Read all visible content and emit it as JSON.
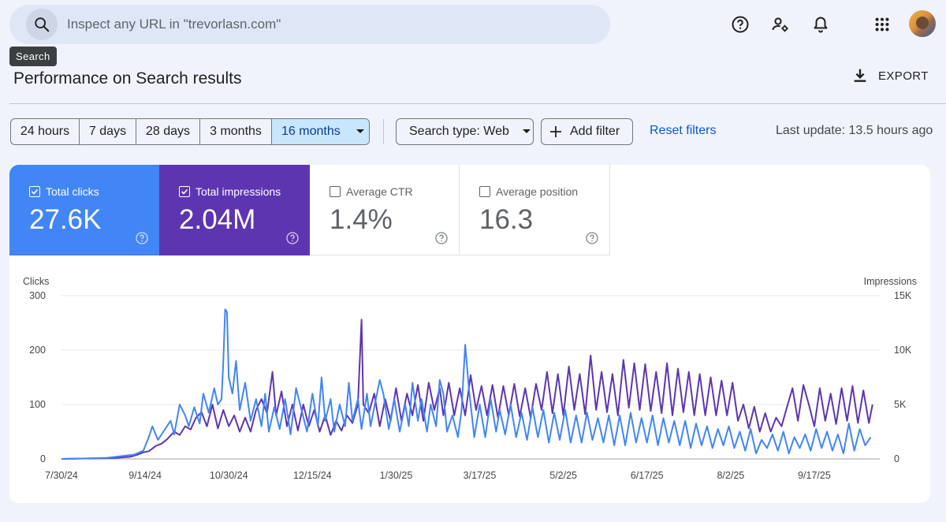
{
  "search": {
    "placeholder": "Inspect any URL in \"trevorlasn.com\"",
    "tooltip": "Search"
  },
  "header_icons": [
    "help-icon",
    "manage-users-icon",
    "notifications-icon",
    "apps-grid-icon"
  ],
  "page": {
    "title": "Performance on Search results",
    "export_label": "EXPORT"
  },
  "filters": {
    "ranges": [
      {
        "label": "24 hours",
        "active": false
      },
      {
        "label": "7 days",
        "active": false
      },
      {
        "label": "28 days",
        "active": false
      },
      {
        "label": "3 months",
        "active": false
      },
      {
        "label": "16 months",
        "active": true
      }
    ],
    "search_type": "Search type: Web",
    "add_filter": "Add filter",
    "reset": "Reset filters",
    "last_update": "Last update: 13.5 hours ago"
  },
  "metrics": [
    {
      "label": "Total clicks",
      "value": "27.6K",
      "checked": true,
      "color": "#4285f4"
    },
    {
      "label": "Total impressions",
      "value": "2.04M",
      "checked": true,
      "color": "#5e35b1"
    },
    {
      "label": "Average CTR",
      "value": "1.4%",
      "checked": false,
      "color": "#ffffff"
    },
    {
      "label": "Average position",
      "value": "16.3",
      "checked": false,
      "color": "#ffffff"
    }
  ],
  "chart_data": {
    "type": "line",
    "left_axis_label": "Clicks",
    "right_axis_label": "Impressions",
    "left_ticks": [
      "0",
      "100",
      "200",
      "300"
    ],
    "right_ticks": [
      "0",
      "5K",
      "10K",
      "15K"
    ],
    "ylim_left": [
      0,
      300
    ],
    "ylim_right": [
      0,
      15000
    ],
    "x_tick_labels": [
      "7/30/24",
      "9/14/24",
      "10/30/24",
      "12/15/24",
      "1/30/25",
      "3/17/25",
      "5/2/25",
      "6/17/25",
      "8/2/25",
      "9/17/25"
    ],
    "x_tick_days": [
      0,
      46,
      92,
      138,
      184,
      230,
      276,
      322,
      368,
      414
    ],
    "total_days": 450,
    "series": [
      {
        "name": "Clicks",
        "axis": "left",
        "color": "#4285f4",
        "points": [
          [
            0,
            0
          ],
          [
            15,
            1
          ],
          [
            25,
            2
          ],
          [
            30,
            4
          ],
          [
            35,
            6
          ],
          [
            40,
            8
          ],
          [
            45,
            15
          ],
          [
            48,
            40
          ],
          [
            50,
            60
          ],
          [
            53,
            35
          ],
          [
            56,
            50
          ],
          [
            60,
            70
          ],
          [
            62,
            45
          ],
          [
            65,
            100
          ],
          [
            68,
            80
          ],
          [
            70,
            60
          ],
          [
            73,
            95
          ],
          [
            76,
            65
          ],
          [
            78,
            120
          ],
          [
            81,
            85
          ],
          [
            84,
            130
          ],
          [
            86,
            100
          ],
          [
            88,
            110
          ],
          [
            89,
            180
          ],
          [
            90,
            275
          ],
          [
            91,
            270
          ],
          [
            92,
            150
          ],
          [
            94,
            120
          ],
          [
            96,
            180
          ],
          [
            98,
            90
          ],
          [
            101,
            140
          ],
          [
            104,
            70
          ],
          [
            107,
            110
          ],
          [
            110,
            60
          ],
          [
            112,
            120
          ],
          [
            114,
            50
          ],
          [
            117,
            95
          ],
          [
            120,
            55
          ],
          [
            123,
            110
          ],
          [
            126,
            45
          ],
          [
            129,
            130
          ],
          [
            132,
            90
          ],
          [
            135,
            50
          ],
          [
            138,
            120
          ],
          [
            141,
            60
          ],
          [
            143,
            150
          ],
          [
            145,
            70
          ],
          [
            148,
            110
          ],
          [
            150,
            50
          ],
          [
            153,
            100
          ],
          [
            156,
            60
          ],
          [
            158,
            140
          ],
          [
            160,
            70
          ],
          [
            163,
            110
          ],
          [
            165,
            55
          ],
          [
            168,
            120
          ],
          [
            170,
            60
          ],
          [
            172,
            95
          ],
          [
            175,
            145
          ],
          [
            177,
            120
          ],
          [
            180,
            55
          ],
          [
            183,
            110
          ],
          [
            186,
            50
          ],
          [
            189,
            100
          ],
          [
            191,
            60
          ],
          [
            193,
            140
          ],
          [
            196,
            70
          ],
          [
            198,
            110
          ],
          [
            201,
            50
          ],
          [
            203,
            100
          ],
          [
            206,
            60
          ],
          [
            208,
            145
          ],
          [
            210,
            120
          ],
          [
            212,
            50
          ],
          [
            215,
            80
          ],
          [
            218,
            40
          ],
          [
            220,
            90
          ],
          [
            222,
            210
          ],
          [
            224,
            130
          ],
          [
            227,
            40
          ],
          [
            230,
            100
          ],
          [
            233,
            40
          ],
          [
            236,
            110
          ],
          [
            239,
            50
          ],
          [
            241,
            90
          ],
          [
            244,
            45
          ],
          [
            247,
            100
          ],
          [
            250,
            40
          ],
          [
            253,
            85
          ],
          [
            256,
            35
          ],
          [
            259,
            95
          ],
          [
            262,
            40
          ],
          [
            265,
            90
          ],
          [
            268,
            30
          ],
          [
            271,
            85
          ],
          [
            274,
            35
          ],
          [
            277,
            90
          ],
          [
            280,
            30
          ],
          [
            283,
            80
          ],
          [
            286,
            30
          ],
          [
            289,
            85
          ],
          [
            292,
            35
          ],
          [
            295,
            75
          ],
          [
            298,
            30
          ],
          [
            301,
            80
          ],
          [
            304,
            25
          ],
          [
            307,
            80
          ],
          [
            310,
            25
          ],
          [
            313,
            85
          ],
          [
            316,
            30
          ],
          [
            319,
            75
          ],
          [
            322,
            30
          ],
          [
            325,
            80
          ],
          [
            328,
            25
          ],
          [
            331,
            75
          ],
          [
            334,
            30
          ],
          [
            337,
            70
          ],
          [
            340,
            25
          ],
          [
            343,
            70
          ],
          [
            346,
            20
          ],
          [
            349,
            65
          ],
          [
            352,
            25
          ],
          [
            355,
            60
          ],
          [
            358,
            20
          ],
          [
            361,
            55
          ],
          [
            364,
            25
          ],
          [
            367,
            60
          ],
          [
            370,
            20
          ],
          [
            373,
            50
          ],
          [
            376,
            15
          ],
          [
            379,
            55
          ],
          [
            382,
            10
          ],
          [
            385,
            35
          ],
          [
            388,
            20
          ],
          [
            391,
            45
          ],
          [
            394,
            15
          ],
          [
            397,
            50
          ],
          [
            400,
            10
          ],
          [
            403,
            40
          ],
          [
            406,
            20
          ],
          [
            409,
            45
          ],
          [
            412,
            15
          ],
          [
            415,
            55
          ],
          [
            418,
            20
          ],
          [
            421,
            50
          ],
          [
            424,
            15
          ],
          [
            427,
            45
          ],
          [
            430,
            10
          ],
          [
            433,
            65
          ],
          [
            436,
            15
          ],
          [
            439,
            55
          ],
          [
            442,
            25
          ],
          [
            445,
            40
          ]
        ]
      },
      {
        "name": "Impressions",
        "axis": "right",
        "color": "#5e35b1",
        "points": [
          [
            0,
            0
          ],
          [
            20,
            50
          ],
          [
            30,
            100
          ],
          [
            38,
            200
          ],
          [
            42,
            400
          ],
          [
            45,
            600
          ],
          [
            48,
            700
          ],
          [
            52,
            1200
          ],
          [
            55,
            1400
          ],
          [
            58,
            1800
          ],
          [
            62,
            2500
          ],
          [
            65,
            2200
          ],
          [
            68,
            3000
          ],
          [
            71,
            2700
          ],
          [
            74,
            3800
          ],
          [
            77,
            4300
          ],
          [
            80,
            3000
          ],
          [
            83,
            5000
          ],
          [
            86,
            2800
          ],
          [
            89,
            4500
          ],
          [
            92,
            3000
          ],
          [
            95,
            4000
          ],
          [
            98,
            2500
          ],
          [
            101,
            3800
          ],
          [
            104,
            2500
          ],
          [
            107,
            4500
          ],
          [
            110,
            5500
          ],
          [
            113,
            4200
          ],
          [
            116,
            8000
          ],
          [
            118,
            4000
          ],
          [
            121,
            6200
          ],
          [
            124,
            3000
          ],
          [
            127,
            5000
          ],
          [
            130,
            2600
          ],
          [
            133,
            5000
          ],
          [
            136,
            3000
          ],
          [
            139,
            4500
          ],
          [
            142,
            2500
          ],
          [
            145,
            4000
          ],
          [
            148,
            2200
          ],
          [
            151,
            3500
          ],
          [
            154,
            2600
          ],
          [
            157,
            4000
          ],
          [
            160,
            3300
          ],
          [
            163,
            5000
          ],
          [
            165,
            12800
          ],
          [
            166,
            5000
          ],
          [
            169,
            4200
          ],
          [
            172,
            6000
          ],
          [
            175,
            3000
          ],
          [
            178,
            5500
          ],
          [
            181,
            3500
          ],
          [
            184,
            6500
          ],
          [
            187,
            3500
          ],
          [
            190,
            6000
          ],
          [
            193,
            4000
          ],
          [
            196,
            6800
          ],
          [
            199,
            3500
          ],
          [
            202,
            7000
          ],
          [
            205,
            4500
          ],
          [
            208,
            6500
          ],
          [
            210,
            4000
          ],
          [
            213,
            7000
          ],
          [
            216,
            4000
          ],
          [
            219,
            6500
          ],
          [
            222,
            4000
          ],
          [
            225,
            7700
          ],
          [
            228,
            4500
          ],
          [
            231,
            6700
          ],
          [
            234,
            4000
          ],
          [
            237,
            6800
          ],
          [
            240,
            3800
          ],
          [
            243,
            6700
          ],
          [
            246,
            4000
          ],
          [
            249,
            6900
          ],
          [
            252,
            3900
          ],
          [
            255,
            6500
          ],
          [
            258,
            3800
          ],
          [
            261,
            6900
          ],
          [
            264,
            4500
          ],
          [
            267,
            8000
          ],
          [
            270,
            4200
          ],
          [
            273,
            7800
          ],
          [
            276,
            4000
          ],
          [
            279,
            8500
          ],
          [
            282,
            4500
          ],
          [
            285,
            7800
          ],
          [
            288,
            4100
          ],
          [
            291,
            9500
          ],
          [
            294,
            4500
          ],
          [
            297,
            8000
          ],
          [
            300,
            4300
          ],
          [
            303,
            7800
          ],
          [
            306,
            4000
          ],
          [
            309,
            9100
          ],
          [
            312,
            4700
          ],
          [
            315,
            8800
          ],
          [
            318,
            4500
          ],
          [
            321,
            8700
          ],
          [
            324,
            4400
          ],
          [
            327,
            8000
          ],
          [
            330,
            4200
          ],
          [
            333,
            8800
          ],
          [
            336,
            4000
          ],
          [
            339,
            8300
          ],
          [
            342,
            4300
          ],
          [
            345,
            8000
          ],
          [
            348,
            4000
          ],
          [
            351,
            7800
          ],
          [
            354,
            4000
          ],
          [
            357,
            7500
          ],
          [
            360,
            4000
          ],
          [
            363,
            7200
          ],
          [
            366,
            4000
          ],
          [
            369,
            7000
          ],
          [
            372,
            3500
          ],
          [
            375,
            5000
          ],
          [
            378,
            2800
          ],
          [
            381,
            4800
          ],
          [
            384,
            2500
          ],
          [
            387,
            4200
          ],
          [
            390,
            2500
          ],
          [
            393,
            3800
          ],
          [
            396,
            3000
          ],
          [
            399,
            4800
          ],
          [
            402,
            6500
          ],
          [
            405,
            3500
          ],
          [
            408,
            6800
          ],
          [
            411,
            5000
          ],
          [
            414,
            3000
          ],
          [
            417,
            6500
          ],
          [
            420,
            3500
          ],
          [
            423,
            6000
          ],
          [
            426,
            3200
          ],
          [
            429,
            6500
          ],
          [
            432,
            3500
          ],
          [
            435,
            6700
          ],
          [
            438,
            3300
          ],
          [
            441,
            6300
          ],
          [
            444,
            3300
          ],
          [
            446,
            5000
          ]
        ]
      }
    ]
  }
}
